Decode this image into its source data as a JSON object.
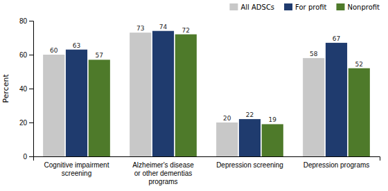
{
  "chart_data": {
    "type": "bar",
    "categories": [
      "Cognitive impairment\nscreening",
      "Alzheimer's disease\nor other dementias\nprograms",
      "Depression screening",
      "Depression programs"
    ],
    "series": [
      {
        "name": "All ADSCs",
        "color": "#c8c8c8",
        "values": [
          60,
          73,
          20,
          58
        ]
      },
      {
        "name": "For profit",
        "color": "#1f3b6e",
        "values": [
          63,
          74,
          22,
          67
        ]
      },
      {
        "name": "Nonprofit",
        "color": "#4e7a2a",
        "values": [
          57,
          72,
          19,
          52
        ]
      }
    ],
    "ylabel": "Percent",
    "ylim": [
      0,
      80
    ],
    "yticks": [
      0,
      20,
      40,
      60,
      80
    ],
    "grid": false,
    "legend": "upper right",
    "data_labels": true
  }
}
